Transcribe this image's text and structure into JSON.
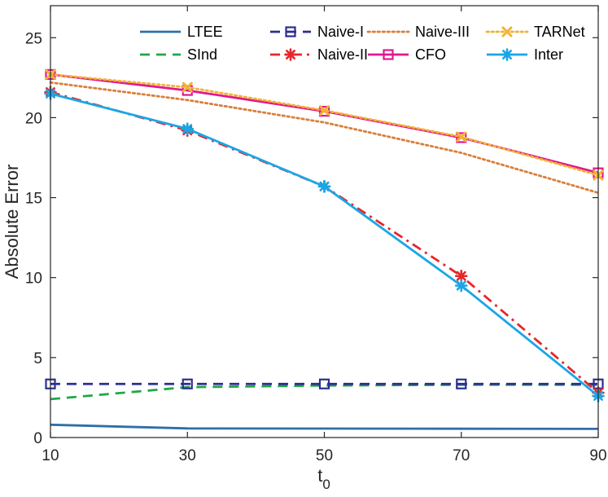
{
  "chart_data": {
    "type": "line",
    "title": "",
    "xlabel": "t",
    "xlabel_subscript": "0",
    "ylabel": "Absolute Error",
    "x": [
      10,
      30,
      50,
      70,
      90
    ],
    "xlim": [
      10,
      90
    ],
    "ylim": [
      0,
      27
    ],
    "xticks": [
      10,
      30,
      50,
      70,
      90
    ],
    "yticks": [
      0,
      5,
      10,
      15,
      20,
      25
    ],
    "legend_position": "top-right",
    "legend_columns": 4,
    "series": [
      {
        "name": "LTEE",
        "values": [
          0.8,
          0.57,
          0.56,
          0.55,
          0.54
        ],
        "color": "#2e6fa8",
        "dash": "solid",
        "marker": "none"
      },
      {
        "name": "SInd",
        "values": [
          2.4,
          3.15,
          3.25,
          3.3,
          3.3
        ],
        "color": "#22a64a",
        "dash": "dashed",
        "marker": "none"
      },
      {
        "name": "Naive-I",
        "values": [
          3.35,
          3.35,
          3.35,
          3.35,
          3.35
        ],
        "color": "#2b2f8f",
        "dash": "dashed",
        "marker": "square"
      },
      {
        "name": "Naive-II",
        "values": [
          21.6,
          19.2,
          15.7,
          10.1,
          2.8
        ],
        "color": "#e8262a",
        "dash": "dashdot",
        "marker": "star"
      },
      {
        "name": "Naive-III",
        "values": [
          22.2,
          21.1,
          19.7,
          17.8,
          15.3
        ],
        "color": "#d97f3c",
        "dash": "dotted",
        "marker": "none"
      },
      {
        "name": "CFO",
        "values": [
          22.7,
          21.7,
          20.4,
          18.75,
          16.55
        ],
        "color": "#e2178f",
        "dash": "solid",
        "marker": "square"
      },
      {
        "name": "TARNet",
        "values": [
          22.7,
          21.9,
          20.45,
          18.8,
          16.4
        ],
        "color": "#f2b233",
        "dash": "dotted",
        "marker": "x"
      },
      {
        "name": "Inter",
        "values": [
          21.5,
          19.3,
          15.7,
          9.5,
          2.6
        ],
        "color": "#1aa6e6",
        "dash": "solid",
        "marker": "star"
      }
    ]
  }
}
